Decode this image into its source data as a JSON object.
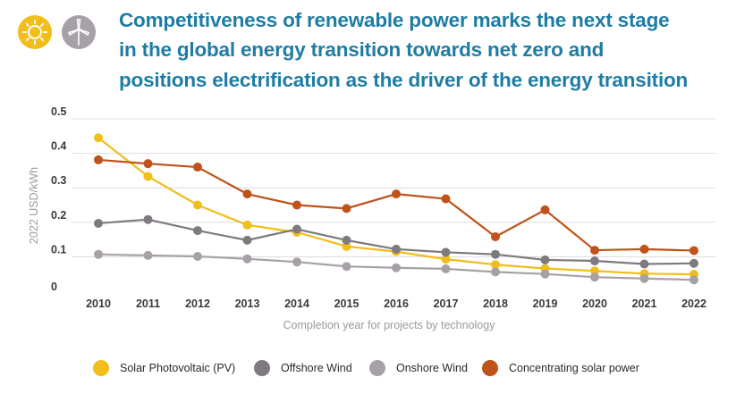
{
  "header": {
    "title_lines": [
      "Competitiveness of renewable power marks the next stage",
      "in the global energy transition towards net zero and",
      "positions electrification as the driver of the energy transition"
    ],
    "icons": [
      "sun-icon",
      "wind-turbine-icon"
    ]
  },
  "chart_data": {
    "type": "line",
    "title": "Competitiveness of renewable power marks the next stage in the global energy transition towards net zero and positions electrification as the driver of the energy transition",
    "xlabel": "Completion year for projects by technology",
    "ylabel": "2022 USD/kWh",
    "categories": [
      "2010",
      "2011",
      "2012",
      "2013",
      "2014",
      "2015",
      "2016",
      "2017",
      "2018",
      "2019",
      "2020",
      "2021",
      "2022"
    ],
    "ylim": [
      0,
      0.5
    ],
    "yticks": [
      "0",
      "0.1",
      "0.2",
      "0.3",
      "0.4",
      "0.5"
    ],
    "grid": true,
    "legend_position": "bottom",
    "series": [
      {
        "name": "Solar Photovoltaic (PV)",
        "color": "#f1be1a",
        "values": [
          0.445,
          0.333,
          0.25,
          0.192,
          0.171,
          0.13,
          0.115,
          0.093,
          0.077,
          0.066,
          0.059,
          0.051,
          0.049
        ]
      },
      {
        "name": "Offshore Wind",
        "color": "#7f7a80",
        "values": [
          0.197,
          0.208,
          0.176,
          0.148,
          0.18,
          0.148,
          0.122,
          0.113,
          0.107,
          0.091,
          0.088,
          0.079,
          0.081
        ]
      },
      {
        "name": "Onshore Wind",
        "color": "#a7a1a7",
        "values": [
          0.107,
          0.104,
          0.101,
          0.094,
          0.085,
          0.072,
          0.068,
          0.065,
          0.056,
          0.05,
          0.041,
          0.037,
          0.033
        ]
      },
      {
        "name": "Concentrating solar power",
        "color": "#c0521a",
        "values": [
          0.381,
          0.37,
          0.36,
          0.282,
          0.25,
          0.24,
          0.282,
          0.268,
          0.158,
          0.236,
          0.119,
          0.122,
          0.118
        ]
      }
    ]
  }
}
